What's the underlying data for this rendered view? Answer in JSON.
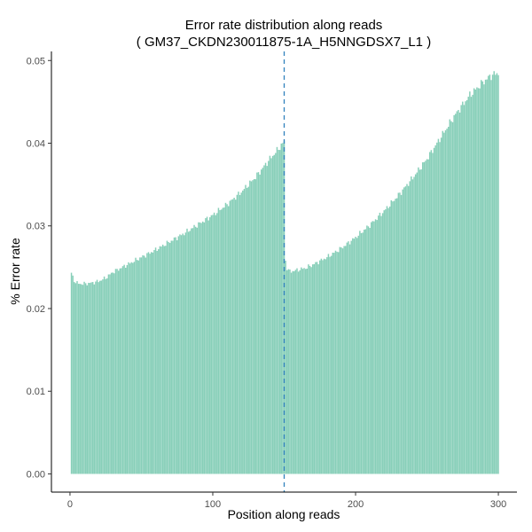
{
  "chart_data": {
    "type": "bar",
    "title_line1": "Error rate distribution along reads",
    "title_line2": "( GM37_CKDN230011875-1A_H5NNGDSX7_L1 )",
    "xlabel": "Position along reads",
    "ylabel": "% Error rate",
    "xlim": [
      -13,
      313
    ],
    "ylim": [
      -0.0022,
      0.0511
    ],
    "xticks": [
      0,
      100,
      200,
      300
    ],
    "xtick_labels": [
      "0",
      "100",
      "200",
      "300"
    ],
    "yticks": [
      0.0,
      0.01,
      0.02,
      0.03,
      0.04,
      0.05
    ],
    "ytick_labels": [
      "0.00",
      "0.01",
      "0.02",
      "0.03",
      "0.04",
      "0.05"
    ],
    "grid": false,
    "legend": "none",
    "bar_color": "#66c2a5",
    "vline": {
      "x": 150,
      "color": "#3182bd",
      "style": "dashed"
    },
    "segments": [
      {
        "x_start": 1,
        "x_end": 150,
        "anchors": [
          [
            1,
            0.0243
          ],
          [
            2,
            0.0238
          ],
          [
            3,
            0.0234
          ],
          [
            4,
            0.0232
          ],
          [
            5,
            0.0231
          ],
          [
            6,
            0.023
          ],
          [
            10,
            0.023
          ],
          [
            15,
            0.0231
          ],
          [
            20,
            0.0233
          ],
          [
            25,
            0.0237
          ],
          [
            30,
            0.0244
          ],
          [
            40,
            0.0253
          ],
          [
            50,
            0.0262
          ],
          [
            60,
            0.0271
          ],
          [
            70,
            0.0281
          ],
          [
            80,
            0.0291
          ],
          [
            90,
            0.0302
          ],
          [
            100,
            0.0313
          ],
          [
            110,
            0.0326
          ],
          [
            120,
            0.0341
          ],
          [
            130,
            0.0359
          ],
          [
            140,
            0.0381
          ],
          [
            145,
            0.0391
          ],
          [
            150,
            0.0402
          ]
        ]
      },
      {
        "x_start": 151,
        "x_end": 300,
        "anchors": [
          [
            151,
            0.0258
          ],
          [
            152,
            0.0249
          ],
          [
            153,
            0.0246
          ],
          [
            155,
            0.0245
          ],
          [
            160,
            0.0247
          ],
          [
            165,
            0.0249
          ],
          [
            170,
            0.0253
          ],
          [
            180,
            0.0262
          ],
          [
            190,
            0.0273
          ],
          [
            200,
            0.0286
          ],
          [
            210,
            0.0301
          ],
          [
            220,
            0.0318
          ],
          [
            230,
            0.0337
          ],
          [
            240,
            0.0358
          ],
          [
            250,
            0.0381
          ],
          [
            260,
            0.0408
          ],
          [
            270,
            0.0435
          ],
          [
            280,
            0.0458
          ],
          [
            290,
            0.0475
          ],
          [
            295,
            0.0482
          ],
          [
            300,
            0.0485
          ]
        ]
      }
    ]
  }
}
